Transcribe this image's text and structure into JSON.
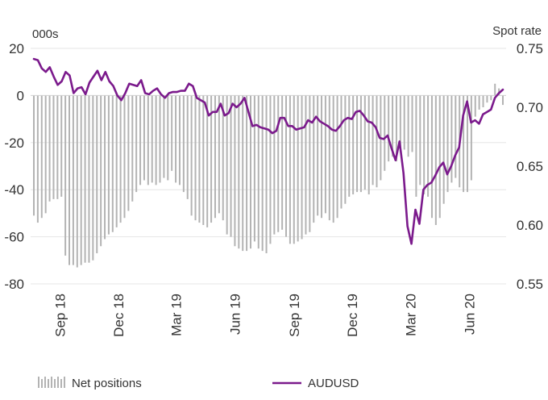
{
  "chart_data": {
    "type": "bar+line",
    "left_axis_unit": "000s",
    "right_axis_unit": "Spot rate",
    "left_ylim": [
      -80,
      20
    ],
    "left_ticks": [
      "20",
      "0",
      "-20",
      "-40",
      "-60",
      "-80"
    ],
    "right_ylim": [
      0.55,
      0.75
    ],
    "right_ticks": [
      "0.75",
      "0.70",
      "0.65",
      "0.60",
      "0.55"
    ],
    "x_range": [
      "2018-07-17",
      "2020-07-28"
    ],
    "x_ticks": [
      {
        "label": "Sep 18",
        "date": "2018-09-01"
      },
      {
        "label": "Dec 18",
        "date": "2018-12-01"
      },
      {
        "label": "Mar 19",
        "date": "2019-03-01"
      },
      {
        "label": "Jun 19",
        "date": "2019-06-01"
      },
      {
        "label": "Sep 19",
        "date": "2019-09-01"
      },
      {
        "label": "Dec 19",
        "date": "2019-12-01"
      },
      {
        "label": "Mar 20",
        "date": "2020-03-01"
      },
      {
        "label": "Jun 20",
        "date": "2020-06-01"
      }
    ],
    "grid": true,
    "legend_position": "bottom",
    "series": [
      {
        "name": "Net positions",
        "type": "bar",
        "axis": "left",
        "color": "#b3b3b3",
        "values": [
          -51,
          -54,
          -52,
          -50,
          -45,
          -44,
          -44,
          -43,
          -68,
          -72,
          -72,
          -73,
          -72,
          -71,
          -71,
          -70,
          -67,
          -64,
          -61,
          -59,
          -58,
          -56,
          -54,
          -52,
          -49,
          -45,
          -41,
          -38,
          -36,
          -38,
          -37,
          -38,
          -37,
          -35,
          -36,
          -32,
          -37,
          -38,
          -41,
          -44,
          -51,
          -53,
          -54,
          -55,
          -56,
          -54,
          -52,
          -50,
          -53,
          -59,
          -60,
          -64,
          -65,
          -66,
          -66,
          -65,
          -62,
          -65,
          -66,
          -67,
          -63,
          -59,
          -58,
          -57,
          -60,
          -63,
          -63,
          -62,
          -61,
          -59,
          -58,
          -54,
          -51,
          -52,
          -50,
          -53,
          -54,
          -52,
          -48,
          -46,
          -43,
          -42,
          -41,
          -41,
          -40,
          -42,
          -38,
          -39,
          -36,
          -32,
          -28,
          -26,
          -28,
          -24,
          -23,
          -26,
          -24,
          -43,
          -38,
          -42,
          -43,
          -52,
          -55,
          -52,
          -46,
          -41,
          -37,
          -35,
          -39,
          -41,
          -41,
          -36,
          -9,
          -6,
          -5,
          -3,
          -2,
          5,
          3,
          -4
        ]
      },
      {
        "name": "AUDUSD",
        "type": "line",
        "axis": "right",
        "color": "#7b1a8c",
        "values": [
          0.741,
          0.74,
          0.733,
          0.73,
          0.734,
          0.726,
          0.719,
          0.722,
          0.73,
          0.727,
          0.712,
          0.716,
          0.717,
          0.711,
          0.721,
          0.726,
          0.731,
          0.723,
          0.73,
          0.722,
          0.718,
          0.71,
          0.706,
          0.712,
          0.72,
          0.719,
          0.718,
          0.723,
          0.712,
          0.711,
          0.714,
          0.716,
          0.711,
          0.708,
          0.712,
          0.713,
          0.713,
          0.714,
          0.714,
          0.72,
          0.718,
          0.708,
          0.706,
          0.704,
          0.693,
          0.696,
          0.696,
          0.703,
          0.693,
          0.695,
          0.703,
          0.7,
          0.703,
          0.708,
          0.696,
          0.684,
          0.685,
          0.683,
          0.682,
          0.681,
          0.678,
          0.68,
          0.691,
          0.691,
          0.684,
          0.684,
          0.681,
          0.682,
          0.683,
          0.689,
          0.687,
          0.692,
          0.688,
          0.686,
          0.684,
          0.681,
          0.68,
          0.684,
          0.689,
          0.691,
          0.69,
          0.696,
          0.697,
          0.693,
          0.688,
          0.687,
          0.683,
          0.674,
          0.673,
          0.676,
          0.665,
          0.655,
          0.671,
          0.644,
          0.599,
          0.584,
          0.613,
          0.601,
          0.63,
          0.634,
          0.636,
          0.642,
          0.649,
          0.653,
          0.643,
          0.65,
          0.659,
          0.666,
          0.693,
          0.705,
          0.687,
          0.689,
          0.686,
          0.694,
          0.696,
          0.698,
          0.708,
          0.712,
          0.715
        ]
      }
    ]
  }
}
